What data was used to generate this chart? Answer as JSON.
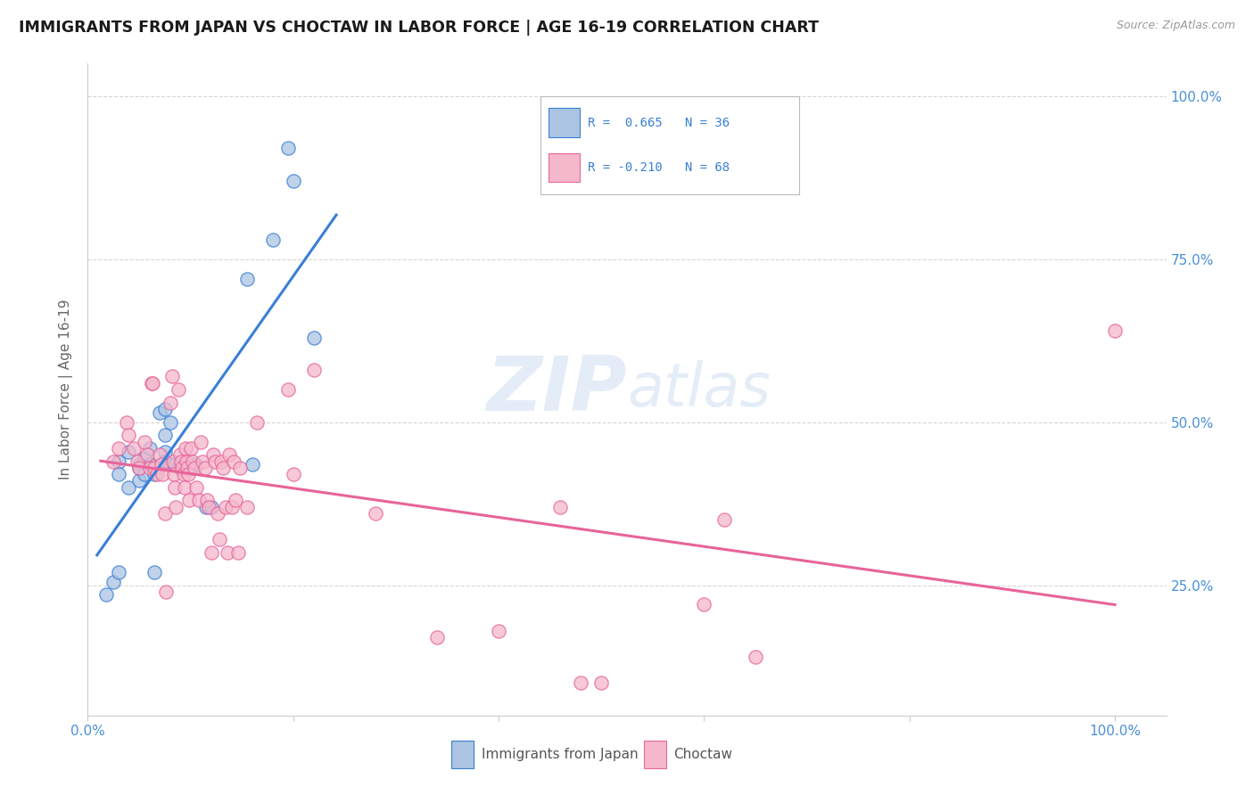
{
  "title": "IMMIGRANTS FROM JAPAN VS CHOCTAW IN LABOR FORCE | AGE 16-19 CORRELATION CHART",
  "source": "Source: ZipAtlas.com",
  "ylabel": "In Labor Force | Age 16-19",
  "japan_color": "#aac4e2",
  "choctaw_color": "#f5b8cb",
  "japan_line_color": "#3a7fd5",
  "choctaw_line_color": "#e8649a",
  "japan_scatter": [
    [
      0.03,
      0.44
    ],
    [
      0.03,
      0.42
    ],
    [
      0.04,
      0.455
    ],
    [
      0.04,
      0.4
    ],
    [
      0.05,
      0.435
    ],
    [
      0.05,
      0.41
    ],
    [
      0.05,
      0.43
    ],
    [
      0.055,
      0.445
    ],
    [
      0.055,
      0.42
    ],
    [
      0.06,
      0.46
    ],
    [
      0.06,
      0.435
    ],
    [
      0.065,
      0.42
    ],
    [
      0.07,
      0.515
    ],
    [
      0.075,
      0.52
    ],
    [
      0.075,
      0.48
    ],
    [
      0.075,
      0.455
    ],
    [
      0.075,
      0.44
    ],
    [
      0.08,
      0.5
    ],
    [
      0.08,
      0.435
    ],
    [
      0.085,
      0.435
    ],
    [
      0.09,
      0.435
    ],
    [
      0.09,
      0.43
    ],
    [
      0.1,
      0.43
    ],
    [
      0.105,
      0.435
    ],
    [
      0.115,
      0.37
    ],
    [
      0.12,
      0.37
    ],
    [
      0.155,
      0.72
    ],
    [
      0.16,
      0.435
    ],
    [
      0.18,
      0.78
    ],
    [
      0.195,
      0.92
    ],
    [
      0.2,
      0.87
    ],
    [
      0.22,
      0.63
    ],
    [
      0.025,
      0.255
    ],
    [
      0.03,
      0.27
    ],
    [
      0.065,
      0.27
    ],
    [
      0.018,
      0.235
    ]
  ],
  "choctaw_scatter": [
    [
      0.025,
      0.44
    ],
    [
      0.03,
      0.46
    ],
    [
      0.038,
      0.5
    ],
    [
      0.04,
      0.48
    ],
    [
      0.045,
      0.46
    ],
    [
      0.048,
      0.44
    ],
    [
      0.05,
      0.43
    ],
    [
      0.055,
      0.47
    ],
    [
      0.058,
      0.45
    ],
    [
      0.06,
      0.43
    ],
    [
      0.062,
      0.56
    ],
    [
      0.063,
      0.56
    ],
    [
      0.065,
      0.43
    ],
    [
      0.067,
      0.42
    ],
    [
      0.07,
      0.45
    ],
    [
      0.072,
      0.435
    ],
    [
      0.073,
      0.42
    ],
    [
      0.075,
      0.36
    ],
    [
      0.076,
      0.24
    ],
    [
      0.08,
      0.53
    ],
    [
      0.082,
      0.57
    ],
    [
      0.083,
      0.44
    ],
    [
      0.084,
      0.42
    ],
    [
      0.085,
      0.4
    ],
    [
      0.086,
      0.37
    ],
    [
      0.088,
      0.55
    ],
    [
      0.09,
      0.45
    ],
    [
      0.091,
      0.44
    ],
    [
      0.092,
      0.43
    ],
    [
      0.093,
      0.42
    ],
    [
      0.094,
      0.4
    ],
    [
      0.095,
      0.46
    ],
    [
      0.096,
      0.44
    ],
    [
      0.097,
      0.43
    ],
    [
      0.098,
      0.42
    ],
    [
      0.099,
      0.38
    ],
    [
      0.1,
      0.46
    ],
    [
      0.102,
      0.44
    ],
    [
      0.104,
      0.43
    ],
    [
      0.106,
      0.4
    ],
    [
      0.108,
      0.38
    ],
    [
      0.11,
      0.47
    ],
    [
      0.112,
      0.44
    ],
    [
      0.114,
      0.43
    ],
    [
      0.116,
      0.38
    ],
    [
      0.118,
      0.37
    ],
    [
      0.12,
      0.3
    ],
    [
      0.122,
      0.45
    ],
    [
      0.124,
      0.44
    ],
    [
      0.126,
      0.36
    ],
    [
      0.128,
      0.32
    ],
    [
      0.13,
      0.44
    ],
    [
      0.132,
      0.43
    ],
    [
      0.134,
      0.37
    ],
    [
      0.136,
      0.3
    ],
    [
      0.138,
      0.45
    ],
    [
      0.14,
      0.37
    ],
    [
      0.142,
      0.44
    ],
    [
      0.144,
      0.38
    ],
    [
      0.146,
      0.3
    ],
    [
      0.148,
      0.43
    ],
    [
      0.155,
      0.37
    ],
    [
      0.165,
      0.5
    ],
    [
      0.195,
      0.55
    ],
    [
      0.2,
      0.42
    ],
    [
      0.22,
      0.58
    ],
    [
      0.28,
      0.36
    ],
    [
      0.34,
      0.17
    ],
    [
      0.4,
      0.18
    ],
    [
      0.46,
      0.37
    ],
    [
      0.48,
      0.1
    ],
    [
      0.5,
      0.1
    ],
    [
      0.6,
      0.22
    ],
    [
      0.62,
      0.35
    ],
    [
      0.65,
      0.14
    ],
    [
      1.0,
      0.64
    ]
  ],
  "xlim": [
    0.0,
    1.05
  ],
  "ylim": [
    0.05,
    1.05
  ],
  "x_ticks": [
    0.0,
    0.2,
    0.4,
    0.6,
    0.8,
    1.0
  ],
  "y_ticks": [
    0.25,
    0.5,
    0.75,
    1.0
  ],
  "background_color": "#ffffff",
  "grid_color": "#cccccc"
}
